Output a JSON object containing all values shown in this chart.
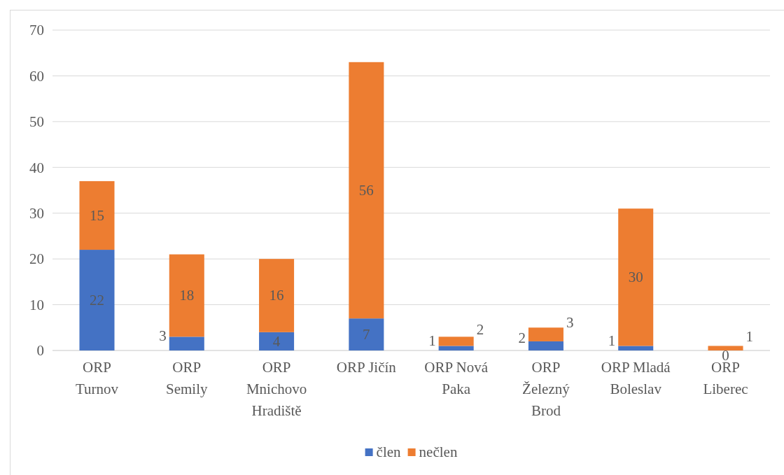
{
  "chart_data": {
    "type": "bar",
    "stacked": true,
    "categories": [
      "ORP Turnov",
      "ORP Semily",
      "ORP Mnichovo Hradiště",
      "ORP Jičín",
      "ORP Nová Paka",
      "ORP Železný Brod",
      "ORP Mladá Boleslav",
      "ORP Liberec"
    ],
    "series": [
      {
        "name": "člen",
        "color": "#4472c4",
        "values": [
          22,
          3,
          4,
          7,
          1,
          2,
          1,
          0
        ]
      },
      {
        "name": "nečlen",
        "color": "#ed7d31",
        "values": [
          15,
          18,
          16,
          56,
          2,
          3,
          30,
          1
        ]
      }
    ],
    "ylim": [
      0,
      70
    ],
    "yticks": [
      0,
      10,
      20,
      30,
      40,
      50,
      60,
      70
    ],
    "grid": "y",
    "legend": "bottom",
    "data_labels": true
  }
}
